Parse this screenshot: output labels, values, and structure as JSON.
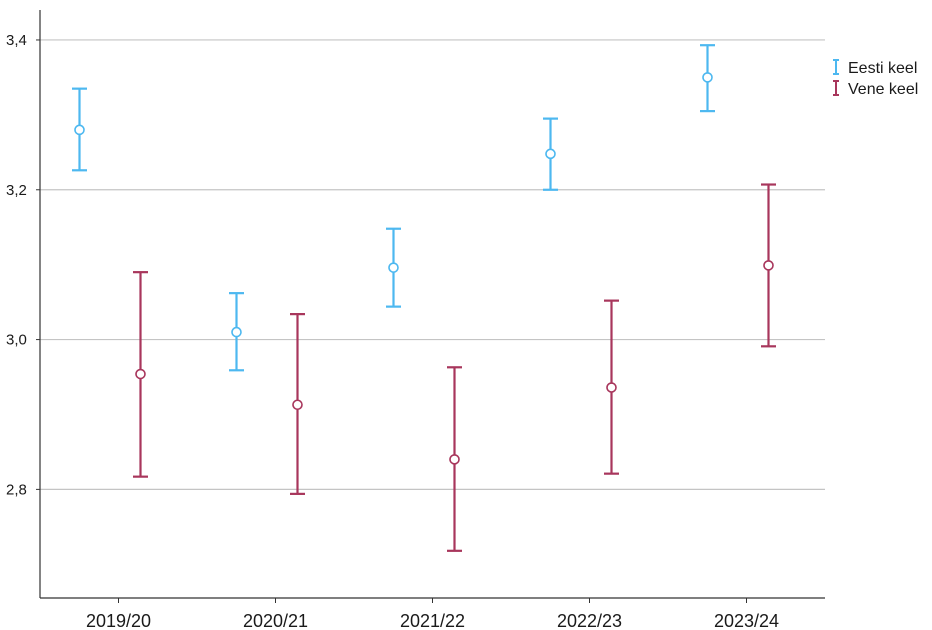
{
  "chart_data": {
    "type": "errorbar",
    "title": "",
    "xlabel": "",
    "ylabel": "",
    "categories": [
      "2019/20",
      "2020/21",
      "2021/22",
      "2022/23",
      "2023/24"
    ],
    "ylim": [
      2.655,
      3.44
    ],
    "y_ticks": [
      2.8,
      3.0,
      3.2,
      3.4
    ],
    "y_tick_labels": [
      "2,8",
      "3,0",
      "3,2",
      "3,4"
    ],
    "grid": "horizontal",
    "legend_position": "top-right",
    "series": [
      {
        "name": "Eesti keel",
        "color": "#4db8f0",
        "mean": [
          3.28,
          3.01,
          3.096,
          3.248,
          3.35
        ],
        "lower": [
          3.226,
          2.959,
          3.044,
          3.2,
          3.305
        ],
        "upper": [
          3.335,
          3.062,
          3.148,
          3.295,
          3.393
        ]
      },
      {
        "name": "Vene keel",
        "color": "#a8365c",
        "mean": [
          2.954,
          2.913,
          2.84,
          2.936,
          3.099
        ],
        "lower": [
          2.817,
          2.794,
          2.718,
          2.821,
          2.991
        ],
        "upper": [
          3.09,
          3.034,
          2.963,
          3.052,
          3.207
        ]
      }
    ]
  }
}
